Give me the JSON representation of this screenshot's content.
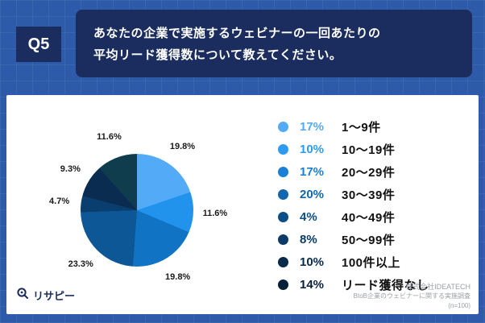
{
  "header": {
    "q_label": "Q5",
    "question_line1": "あなたの企業で実施するウェビナーの一回あたりの",
    "question_line2": "平均リード獲得数について教えてください。"
  },
  "chart_data": {
    "type": "pie",
    "title": "ウェビナーの一回あたりの平均リード獲得数",
    "legend_position": "right",
    "slices": [
      {
        "label": "19.8%",
        "value": 19.8,
        "color": "#53ABF7"
      },
      {
        "label": "11.6%",
        "value": 11.6,
        "color": "#2293EC"
      },
      {
        "label": "19.8%",
        "value": 19.8,
        "color": "#1173C4"
      },
      {
        "label": "23.3%",
        "value": 23.3,
        "color": "#0D5796"
      },
      {
        "label": "4.7%",
        "value": 4.7,
        "color": "#0A3E6F"
      },
      {
        "label": "9.3%",
        "value": 9.3,
        "color": "#0A2C50"
      },
      {
        "label": "11.6%",
        "value": 11.6,
        "color": "#0F3D4E"
      }
    ],
    "legend": [
      {
        "pct": "17%",
        "label": "1〜9件",
        "color": "#53ABF7"
      },
      {
        "pct": "10%",
        "label": "10〜19件",
        "color": "#2E9BF0"
      },
      {
        "pct": "17%",
        "label": "20〜29件",
        "color": "#1A7FD6"
      },
      {
        "pct": "20%",
        "label": "30〜39件",
        "color": "#1266AE"
      },
      {
        "pct": "4%",
        "label": "40〜49件",
        "color": "#0D4E88"
      },
      {
        "pct": "8%",
        "label": "50〜99件",
        "color": "#0A3B68"
      },
      {
        "pct": "10%",
        "label": "100件以上",
        "color": "#08294A"
      },
      {
        "pct": "14%",
        "label": "リード獲得なし",
        "color": "#071F38"
      }
    ]
  },
  "footer": {
    "brand": "リサピー",
    "credit_company": "株式会社IDEATECH",
    "credit_survey": "BtoB企業のウェビナーに関する実施調査",
    "credit_n": "(n=100)"
  },
  "colors": {
    "background": "#2E5BA9",
    "header_box": "#1B2D5E",
    "card": "#FFFFFF"
  }
}
